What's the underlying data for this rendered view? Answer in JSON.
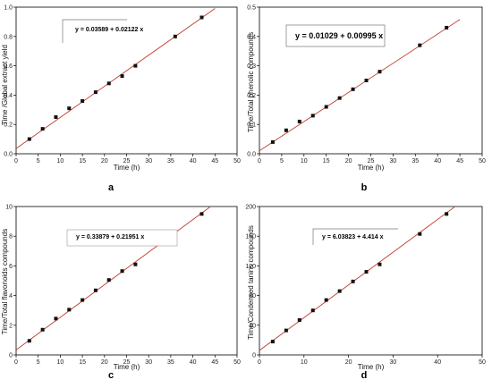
{
  "chart_data": [
    {
      "type": "scatter",
      "panel_label": "a",
      "xlabel": "Time (h)",
      "ylabel": "Time /Global extract yield",
      "xlim": [
        0,
        50
      ],
      "ylim": [
        0,
        1.0
      ],
      "xticks": [
        "0",
        "5",
        "10",
        "15",
        "20",
        "25",
        "30",
        "35",
        "40",
        "45",
        "50"
      ],
      "yticks": [
        "0.0",
        "0.2",
        "0.4",
        "0.6",
        "0.8",
        "1.0"
      ],
      "equation": "y = 0.03589 + 0.02122 x",
      "fit": {
        "intercept": 0.03589,
        "slope": 0.02122
      },
      "series": [
        {
          "x": [
            3,
            6,
            9,
            12,
            15,
            18,
            21,
            24,
            27,
            36,
            42
          ],
          "y": [
            0.1,
            0.17,
            0.25,
            0.31,
            0.36,
            0.42,
            0.48,
            0.53,
            0.6,
            0.8,
            0.93
          ]
        }
      ]
    },
    {
      "type": "scatter",
      "panel_label": "b",
      "xlabel": "Time (h)",
      "ylabel": "Time/Total phenolic compounds",
      "xlim": [
        0,
        50
      ],
      "ylim": [
        0,
        0.5
      ],
      "xticks": [
        "0",
        "5",
        "10",
        "15",
        "20",
        "25",
        "30",
        "35",
        "40",
        "45",
        "50"
      ],
      "yticks": [
        "0.0",
        "0.1",
        "0.2",
        "0.3",
        "0.4",
        "0.5"
      ],
      "equation": "y = 0.01029 + 0.00995 x",
      "fit": {
        "intercept": 0.01029,
        "slope": 0.00995
      },
      "series": [
        {
          "x": [
            3,
            6,
            9,
            12,
            15,
            18,
            21,
            24,
            27,
            36,
            42
          ],
          "y": [
            0.04,
            0.08,
            0.11,
            0.13,
            0.16,
            0.19,
            0.22,
            0.25,
            0.28,
            0.37,
            0.43
          ]
        }
      ]
    },
    {
      "type": "scatter",
      "panel_label": "c",
      "xlabel": "Time (h)",
      "ylabel": "Time/Total flavonoids compounds",
      "xlim": [
        0,
        50
      ],
      "ylim": [
        0,
        10
      ],
      "xticks": [
        "0",
        "5",
        "10",
        "15",
        "20",
        "25",
        "30",
        "35",
        "40",
        "45",
        "50"
      ],
      "yticks": [
        "0",
        "2",
        "4",
        "6",
        "8",
        "10"
      ],
      "equation": "y = 0.33879 + 0.21951 x",
      "fit": {
        "intercept": 0.33879,
        "slope": 0.21951
      },
      "series": [
        {
          "x": [
            3,
            6,
            9,
            12,
            15,
            18,
            21,
            24,
            27,
            36,
            42
          ],
          "y": [
            0.95,
            1.7,
            2.45,
            3.05,
            3.7,
            4.35,
            5.05,
            5.65,
            6.1,
            8.15,
            9.5
          ]
        }
      ]
    },
    {
      "type": "scatter",
      "panel_label": "d",
      "xlabel": "Time (h)",
      "ylabel": "Time/Condensed tanins compounds",
      "xlim": [
        0,
        50
      ],
      "ylim": [
        0,
        200
      ],
      "xticks": [
        "0",
        "10",
        "20",
        "30",
        "40",
        "50"
      ],
      "yticks": [
        "0",
        "40",
        "80",
        "120",
        "160",
        "200"
      ],
      "equation": "y = 6.03823 + 4.414 x",
      "fit": {
        "intercept": 6.03823,
        "slope": 4.414
      },
      "series": [
        {
          "x": [
            3,
            6,
            9,
            12,
            15,
            18,
            21,
            24,
            27,
            36,
            42
          ],
          "y": [
            18,
            33,
            47,
            60,
            74,
            86,
            99,
            112,
            122,
            163,
            190
          ]
        }
      ]
    }
  ]
}
